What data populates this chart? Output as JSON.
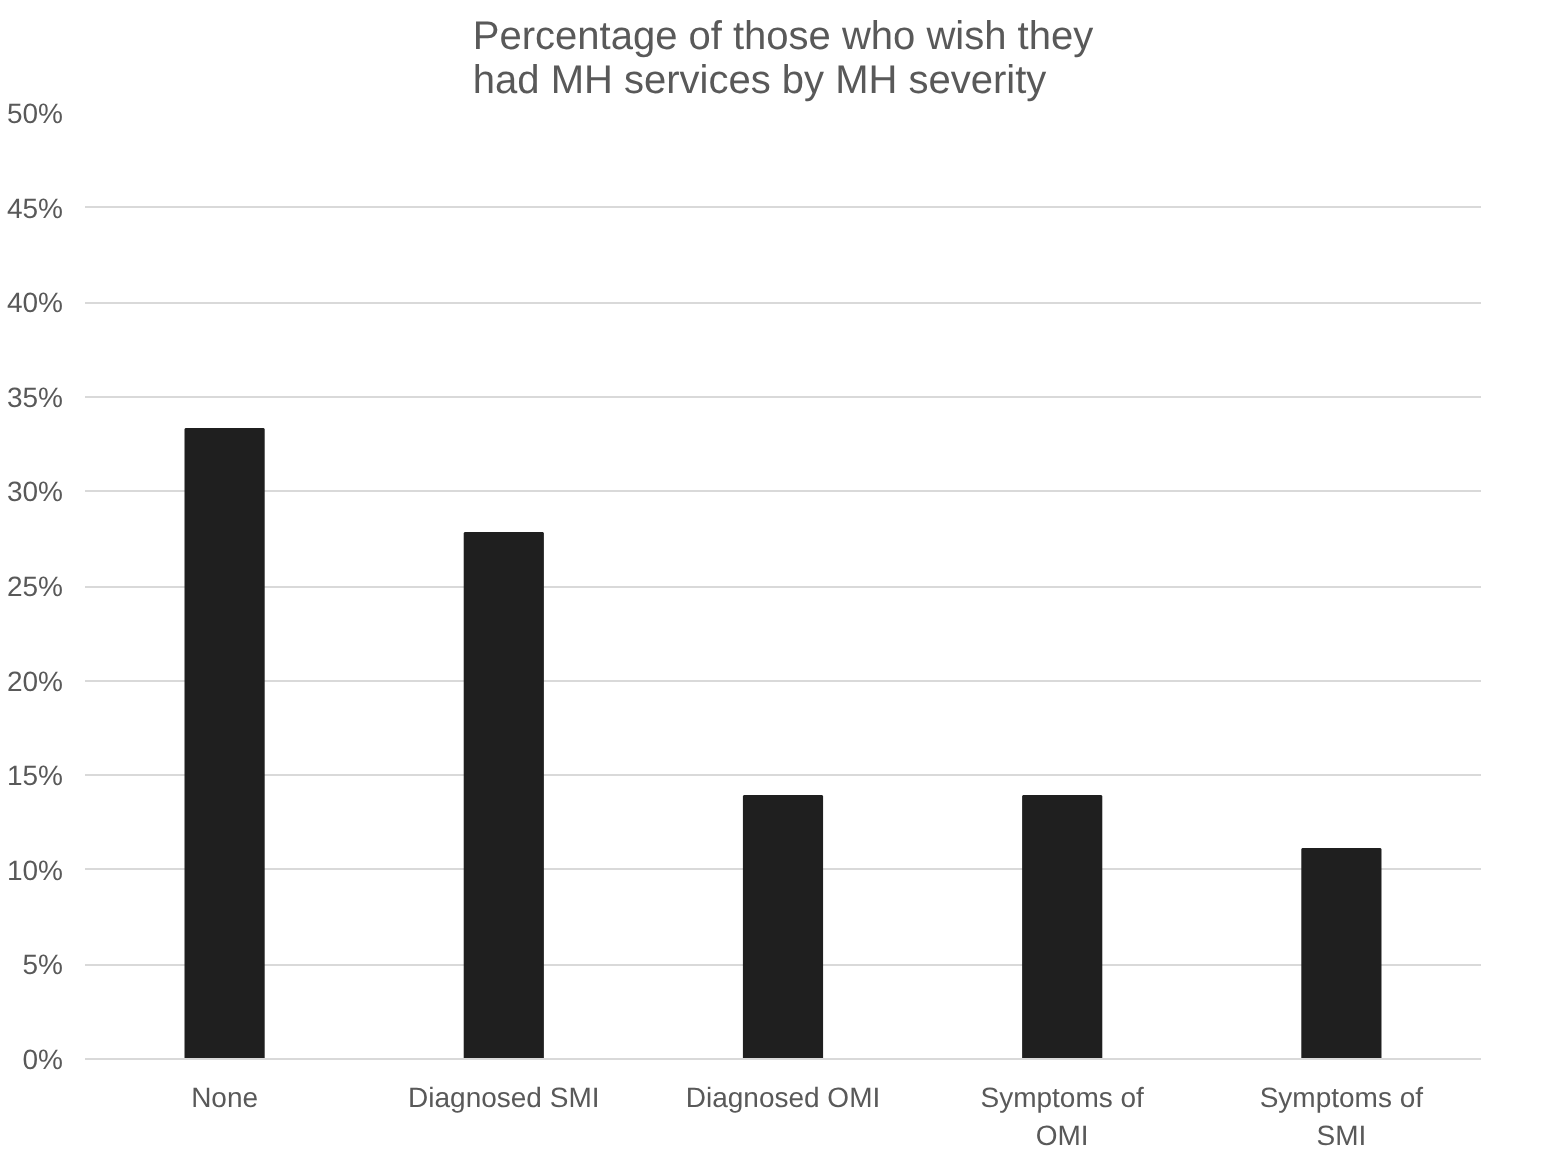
{
  "chart_data": {
    "type": "bar",
    "title": "Percentage of those who wish they had MH services by MH severity",
    "categories": [
      "None",
      "Diagnosed SMI",
      "Diagnosed OMI",
      "Symptoms of OMI",
      "Symptoms of SMI"
    ],
    "values": [
      33.3,
      27.8,
      13.9,
      13.9,
      11.1
    ],
    "color": "#1f1f1f",
    "ylim": [
      0,
      50
    ],
    "yticks": [
      {
        "value": 0,
        "label": "0%"
      },
      {
        "value": 5,
        "label": "5%"
      },
      {
        "value": 10,
        "label": "10%"
      },
      {
        "value": 15,
        "label": "15%"
      },
      {
        "value": 20,
        "label": "20%"
      },
      {
        "value": 25,
        "label": "25%"
      },
      {
        "value": 30,
        "label": "30%"
      },
      {
        "value": 35,
        "label": "35%"
      },
      {
        "value": 40,
        "label": "40%"
      },
      {
        "value": 45,
        "label": "45%"
      },
      {
        "value": 50,
        "label": "50%"
      }
    ],
    "grid": "y"
  }
}
